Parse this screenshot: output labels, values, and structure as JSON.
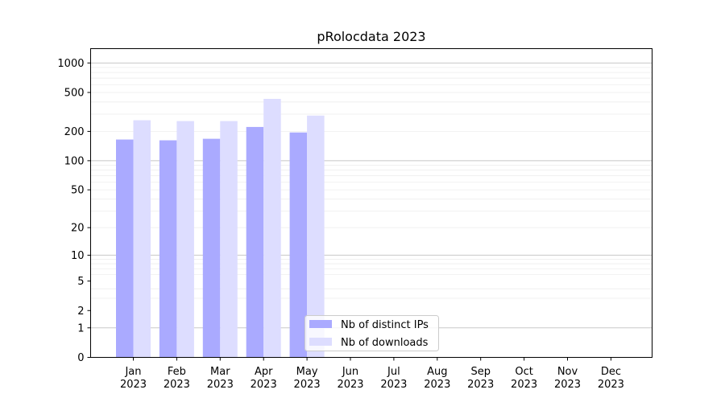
{
  "chart_data": {
    "type": "bar",
    "title": "pRolocdata 2023",
    "xlabel": "",
    "ylabel": "",
    "y_scale": "symlog",
    "ylim": [
      0,
      1400
    ],
    "y_ticks": [
      0,
      1,
      2,
      5,
      10,
      20,
      50,
      100,
      200,
      500,
      1000
    ],
    "y_tick_labels": [
      "0",
      "1",
      "2",
      "5",
      "10",
      "20",
      "50",
      "100",
      "200",
      "500",
      "1000"
    ],
    "grid": "horizontal, major and minor",
    "legend_position": "lower-center",
    "categories": [
      [
        "Jan",
        "2023"
      ],
      [
        "Feb",
        "2023"
      ],
      [
        "Mar",
        "2023"
      ],
      [
        "Apr",
        "2023"
      ],
      [
        "May",
        "2023"
      ],
      [
        "Jun",
        "2023"
      ],
      [
        "Jul",
        "2023"
      ],
      [
        "Aug",
        "2023"
      ],
      [
        "Sep",
        "2023"
      ],
      [
        "Oct",
        "2023"
      ],
      [
        "Nov",
        "2023"
      ],
      [
        "Dec",
        "2023"
      ]
    ],
    "series": [
      {
        "name": "Nb of distinct IPs",
        "color": "#aaaaff",
        "values": [
          165,
          162,
          168,
          222,
          195,
          null,
          null,
          null,
          null,
          null,
          null,
          null
        ]
      },
      {
        "name": "Nb of downloads",
        "color": "#ddddff",
        "values": [
          260,
          255,
          255,
          430,
          290,
          null,
          null,
          null,
          null,
          null,
          null,
          null
        ]
      }
    ]
  }
}
